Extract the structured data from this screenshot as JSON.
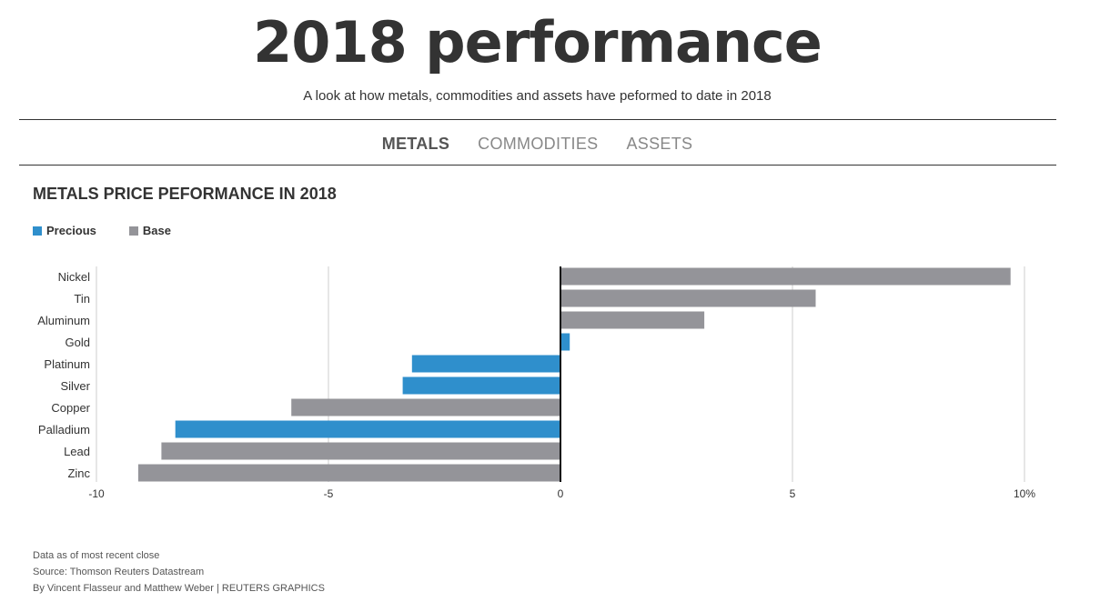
{
  "header": {
    "title": "2018 performance",
    "subtitle": "A look at how metals, commodities and assets have peformed to date in 2018"
  },
  "tabs": [
    {
      "label": "METALS",
      "active": true
    },
    {
      "label": "COMMODITIES",
      "active": false
    },
    {
      "label": "ASSETS",
      "active": false
    }
  ],
  "chart_data": {
    "type": "bar",
    "orientation": "horizontal",
    "title": "METALS PRICE PEFORMANCE IN 2018",
    "categories": [
      "Nickel",
      "Tin",
      "Aluminum",
      "Gold",
      "Platinum",
      "Silver",
      "Copper",
      "Palladium",
      "Lead",
      "Zinc"
    ],
    "values": [
      9.7,
      5.5,
      3.1,
      0.2,
      -3.2,
      -3.4,
      -5.8,
      -8.3,
      -8.6,
      -9.1
    ],
    "groups": [
      "Base",
      "Base",
      "Base",
      "Precious",
      "Precious",
      "Precious",
      "Base",
      "Precious",
      "Base",
      "Base"
    ],
    "legend": [
      {
        "label": "Precious",
        "color": "#2f8fcc"
      },
      {
        "label": "Base",
        "color": "#949499"
      }
    ],
    "xlim": [
      -10,
      10
    ],
    "xticks": [
      -10,
      -5,
      0,
      5,
      10
    ],
    "xtick_labels": [
      "-10",
      "-5",
      "0",
      "5",
      "10%"
    ],
    "grid": true,
    "legend_position": "top-left"
  },
  "footnotes": [
    "Data as of most recent close",
    "Source: Thomson Reuters Datastream",
    "By Vincent Flasseur and Matthew Weber | REUTERS GRAPHICS"
  ]
}
